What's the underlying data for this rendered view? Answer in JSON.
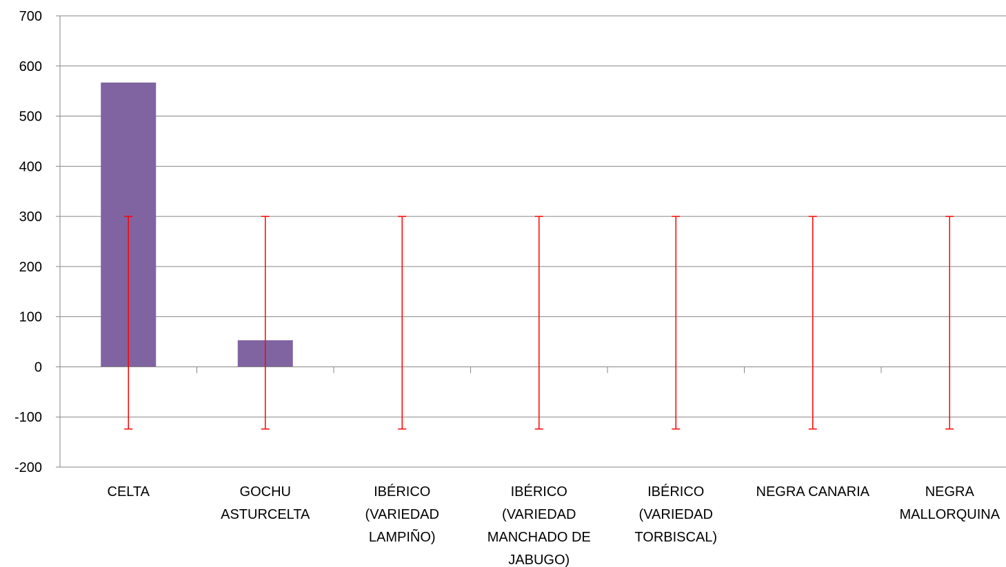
{
  "chart_data": {
    "type": "bar",
    "categories": [
      "CELTA",
      "GOCHU ASTURCELTA",
      "IBÉRICO (VARIEDAD LAMPIÑO)",
      "IBÉRICO (VARIEDAD MANCHADO DE JABUGO)",
      "IBÉRICO (VARIEDAD TORBISCAL)",
      "NEGRA CANARIA",
      "NEGRA MALLORQUINA"
    ],
    "category_lines": [
      [
        "CELTA"
      ],
      [
        "GOCHU",
        "ASTURCELTA"
      ],
      [
        "IBÉRICO",
        "(VARIEDAD",
        "LAMPIÑO)"
      ],
      [
        "IBÉRICO",
        "(VARIEDAD",
        "MANCHADO DE",
        "JABUGO)"
      ],
      [
        "IBÉRICO",
        "(VARIEDAD",
        "TORBISCAL)"
      ],
      [
        "NEGRA CANARIA"
      ],
      [
        "NEGRA",
        "MALLORQUINA"
      ]
    ],
    "values": [
      567,
      53,
      0,
      0,
      0,
      0,
      0
    ],
    "error_bars": {
      "upper": [
        300,
        300,
        300,
        300,
        300,
        300,
        300
      ],
      "lower": [
        -124,
        -124,
        -124,
        -124,
        -124,
        -124,
        -124
      ]
    },
    "ylim": [
      -200,
      700
    ],
    "yticks": [
      -200,
      -100,
      0,
      100,
      200,
      300,
      400,
      500,
      600,
      700
    ],
    "title": "",
    "xlabel": "",
    "ylabel": "",
    "grid": true,
    "legend": "none",
    "colors": {
      "bar": "#8064A2",
      "error_bar": "#FF0000",
      "grid": "#868686",
      "axis": "#868686",
      "text": "#000000"
    }
  }
}
